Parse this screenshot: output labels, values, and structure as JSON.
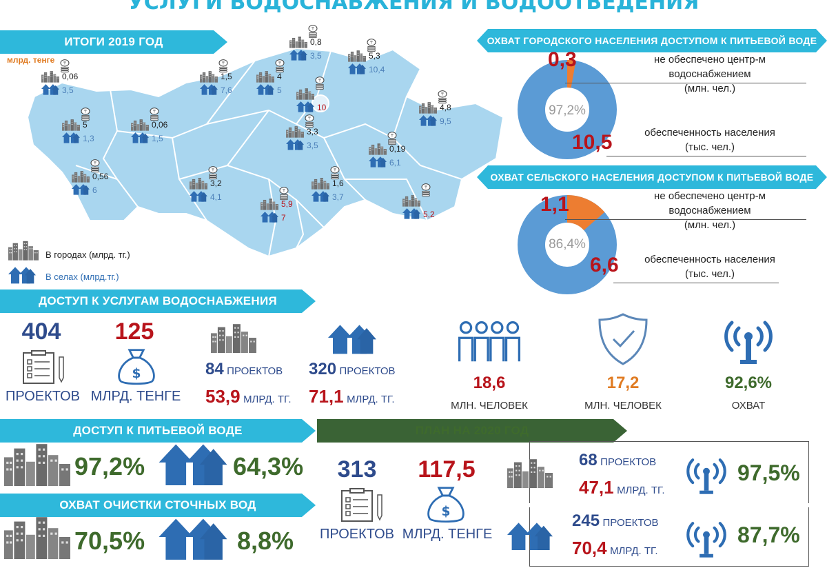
{
  "title": "УСЛУГИ ВОДОСНАБЖЕНИЯ И ВОДООТВЕДЕНИЯ",
  "results_banner": "ИТОГИ 2019 ГОД",
  "unit_label": "млрд. тенге",
  "map_regions": [
    {
      "city": "0,06",
      "village": "3,5"
    },
    {
      "city": "5",
      "village": "1,3"
    },
    {
      "city": "0,56",
      "village": "6"
    },
    {
      "city": "0,06",
      "village": "1,5"
    },
    {
      "city": "1,5",
      "village": "7,6"
    },
    {
      "city": "4",
      "village": "5"
    },
    {
      "city": "0,8",
      "village": "3,5"
    },
    {
      "city": "",
      "village": "10"
    },
    {
      "city": "5,3",
      "village": "10,4"
    },
    {
      "city": "4,8",
      "village": "9,5"
    },
    {
      "city": "3,3",
      "village": "3,5"
    },
    {
      "city": "0,19",
      "village": "6,1"
    },
    {
      "city": "3,2",
      "village": "4,1"
    },
    {
      "city": "5,9",
      "village": "7"
    },
    {
      "city": "1,6",
      "village": "3,7"
    },
    {
      "city": "",
      "village": "5,2"
    }
  ],
  "legend": {
    "city": "В городах (млрд. тг.)",
    "village": "В селах (млрд.тг.)"
  },
  "urban_coverage": {
    "banner": "ОХВАТ ГОРОДСКОГО НАСЕЛЕНИЯ ДОСТУПОМ К ПИТЬЕВОЙ ВОДЕ",
    "center": "97,2%",
    "small_value": "0,3",
    "big_value": "10,5",
    "label1": [
      "не обеспечено центр-м",
      "водоснабжением",
      "(млн. чел.)"
    ],
    "label2": [
      "обеспеченность населения",
      "(тыс. чел.)"
    ],
    "share": 0.972
  },
  "rural_coverage": {
    "banner": "ОХВАТ СЕЛЬСКОГО НАСЕЛЕНИЯ  ДОСТУПОМ К ПИТЬЕВОЙ ВОДЕ",
    "center": "86,4%",
    "small_value": "1,1",
    "big_value": "6,6",
    "label1": [
      "не обеспечено центр-м",
      "водоснабжением",
      "(млн. чел.)"
    ],
    "label2": [
      "обеспеченность населения",
      "(тыс. чел.)"
    ],
    "share": 0.864
  },
  "access_banner": "ДОСТУП К УСЛУГАМ ВОДОСНАБЖЕНИЯ",
  "access": {
    "projects_num": "404",
    "projects_label": "ПРОЕКТОВ",
    "money_num": "125",
    "money_label": "МЛРД. ТЕНГЕ",
    "city_projects_num": "84",
    "city_projects_label": "ПРОЕКТОВ",
    "city_money_num": "53,9",
    "city_money_label": "МЛРД. ТГ.",
    "village_projects_num": "320",
    "village_projects_label": "ПРОЕКТОВ",
    "village_money_num": "71,1",
    "village_money_label": "МЛРД. ТГ.",
    "people1_num": "18,6",
    "people1_label": "МЛН. ЧЕЛОВЕК",
    "people2_num": "17,2",
    "people2_label": "МЛН. ЧЕЛОВЕК",
    "coverage_num": "92,6%",
    "coverage_label": "ОХВАТ"
  },
  "drinking_banner": "ДОСТУП К ПИТЬЕВОЙ ВОДЕ",
  "drinking": {
    "city": "97,2%",
    "village": "64,3%"
  },
  "sewage_banner": "ОХВАТ ОЧИСТКИ СТОЧНЫХ ВОД",
  "sewage": {
    "city": "70,5%",
    "village": "8,8%"
  },
  "plan_banner": "ПЛАН НА 2020 ГОД",
  "plan": {
    "projects_num": "313",
    "projects_label": "ПРОЕКТОВ",
    "money_num": "117,5",
    "money_label": "МЛРД. ТЕНГЕ",
    "city_projects_num": "68",
    "city_projects_label": "ПРОЕКТОВ",
    "city_money_num": "47,1",
    "city_money_label": "МЛРД. ТГ.",
    "city_coverage": "97,5%",
    "village_projects_num": "245",
    "village_projects_label": "ПРОЕКТОВ",
    "village_money_num": "70,4",
    "village_money_label": "МЛРД. ТГ.",
    "village_coverage": "87,7%"
  },
  "colors": {
    "banner_blue": "#2eb8db",
    "banner_green": "#3a6335",
    "navy": "#2e4b8c",
    "red": "#b8141b",
    "donut_blue": "#5b9bd5",
    "donut_orange": "#ed7d31",
    "map": "#a9d6ef"
  },
  "icons": [
    "buildings-icon",
    "houses-icon",
    "coin-stack-icon",
    "checklist-icon",
    "money-bag-icon",
    "people-icon",
    "shield-check-icon",
    "antenna-icon"
  ]
}
